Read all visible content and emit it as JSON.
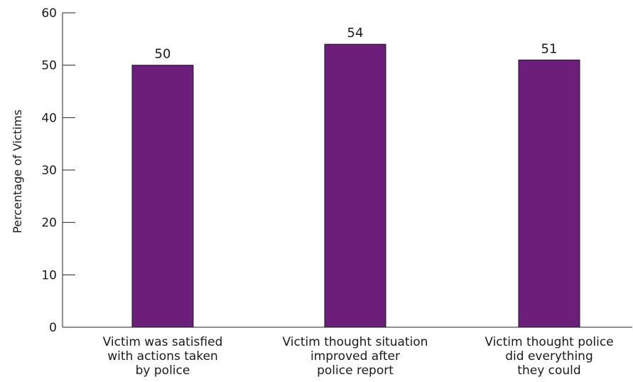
{
  "chart_data": {
    "type": "bar",
    "title": "",
    "xlabel": "",
    "ylabel": "Percentage of Victims",
    "ylim": [
      0,
      60
    ],
    "yticks": [
      0,
      10,
      20,
      30,
      40,
      50,
      60
    ],
    "grid": false,
    "bar_color": "#6b1f7b",
    "categories": [
      [
        "Victim was satisfied",
        "with actions taken",
        "by police"
      ],
      [
        "Victim thought situation",
        "improved after",
        "police report"
      ],
      [
        "Victim thought police",
        "did everything",
        "they could"
      ]
    ],
    "values": [
      50,
      54,
      51
    ]
  }
}
